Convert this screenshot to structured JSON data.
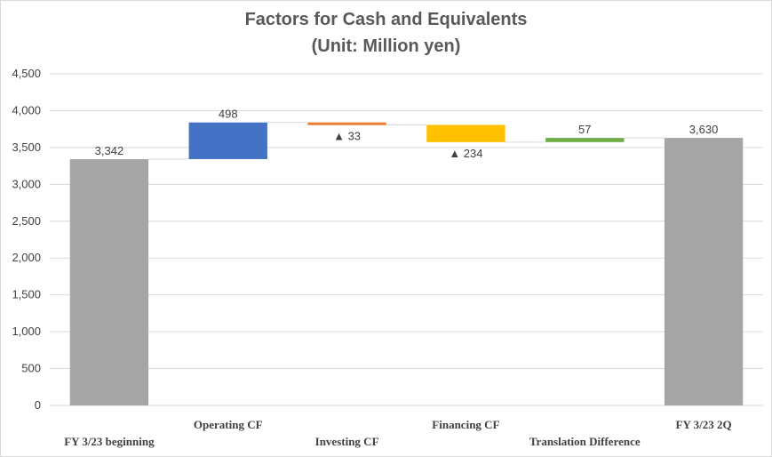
{
  "chart_data": {
    "type": "waterfall",
    "title": "Factors for Cash and Equivalents",
    "subtitle": "(Unit: Million yen)",
    "ylim": [
      0,
      4500
    ],
    "yticks": [
      {
        "value": 0,
        "label": "0"
      },
      {
        "value": 500,
        "label": "500"
      },
      {
        "value": 1000,
        "label": "1,000"
      },
      {
        "value": 1500,
        "label": "1,500"
      },
      {
        "value": 2000,
        "label": "2,000"
      },
      {
        "value": 2500,
        "label": "2,500"
      },
      {
        "value": 3000,
        "label": "3,000"
      },
      {
        "value": 3500,
        "label": "3,500"
      },
      {
        "value": 4000,
        "label": "4,000"
      },
      {
        "value": 4500,
        "label": "4,500"
      }
    ],
    "grid": true,
    "legend": "none",
    "steps": [
      {
        "category": "FY 3/23 beginning",
        "kind": "total",
        "value": 3342,
        "label": "3,342",
        "color": "#a5a5a5"
      },
      {
        "category": "Operating CF",
        "kind": "increase",
        "value": 498,
        "label": "498",
        "color": "#4472c4"
      },
      {
        "category": "Investing CF",
        "kind": "decrease",
        "value": -33,
        "label": "▲ 33",
        "color": "#ed7d31"
      },
      {
        "category": "Financing CF",
        "kind": "decrease",
        "value": -234,
        "label": "▲ 234",
        "color": "#ffc000"
      },
      {
        "category": "Translation Difference",
        "kind": "increase",
        "value": 57,
        "label": "57",
        "color": "#70ad47"
      },
      {
        "category": "FY 3/23 2Q",
        "kind": "total",
        "value": 3630,
        "label": "3,630",
        "color": "#a5a5a5"
      }
    ]
  }
}
